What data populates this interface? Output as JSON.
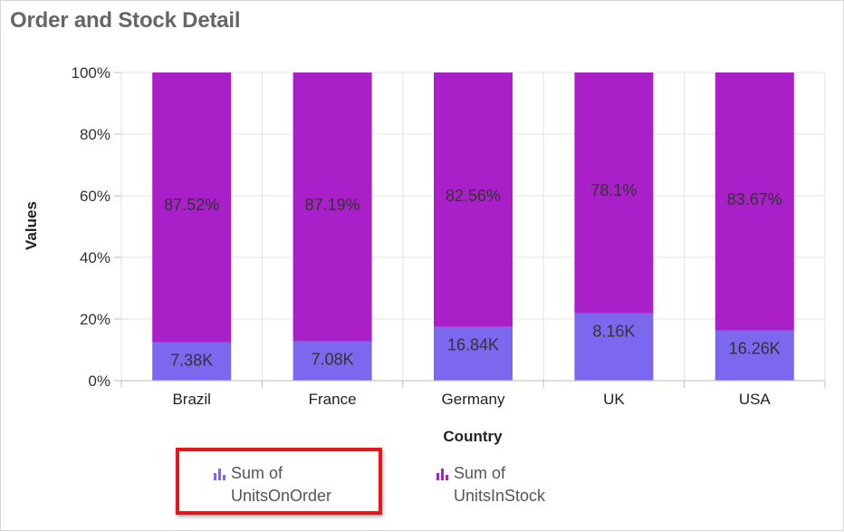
{
  "title": "Order and Stock Detail",
  "chart_data": {
    "type": "bar",
    "stacked": "percent",
    "categories": [
      "Brazil",
      "France",
      "Germany",
      "UK",
      "USA"
    ],
    "series": [
      {
        "name": "Sum of UnitsOnOrder",
        "color": "#7b68ee",
        "values": [
          12.48,
          12.81,
          17.44,
          21.9,
          16.33
        ],
        "labels": [
          "7.38K",
          "7.08K",
          "16.84K",
          "8.16K",
          "16.26K"
        ]
      },
      {
        "name": "Sum of UnitsInStock",
        "color": "#a91fc8",
        "values": [
          87.52,
          87.19,
          82.56,
          78.1,
          83.67
        ],
        "labels": [
          "87.52%",
          "87.19%",
          "82.56%",
          "78.1%",
          "83.67%"
        ]
      }
    ],
    "yticks": [
      "0%",
      "20%",
      "40%",
      "60%",
      "80%",
      "100%"
    ],
    "ylim": [
      0,
      100
    ],
    "xlabel": "Country",
    "ylabel": "Values",
    "grid": true,
    "legend": "bottom"
  },
  "legend": {
    "items": [
      {
        "line1": "Sum of",
        "line2": "UnitsOnOrder",
        "color": "#7b68ee",
        "icon": "bar-chart-icon"
      },
      {
        "line1": "Sum of",
        "line2": "UnitsInStock",
        "color": "#a91fc8",
        "icon": "bar-chart-icon"
      }
    ]
  }
}
